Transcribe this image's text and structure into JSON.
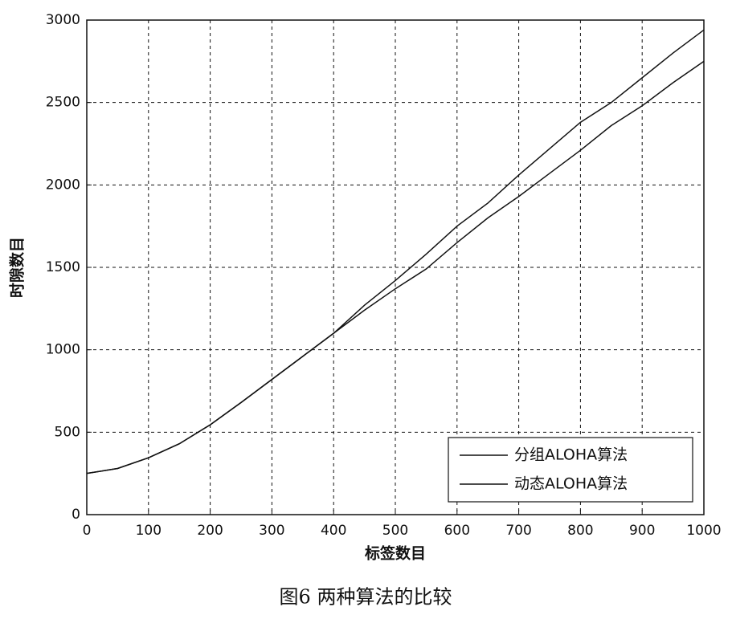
{
  "chart_data": {
    "type": "line",
    "caption": "图6  两种算法的比较",
    "xlabel": "标签数目",
    "ylabel": "时隙数目",
    "x": [
      0,
      50,
      100,
      150,
      200,
      250,
      300,
      350,
      400,
      450,
      500,
      550,
      600,
      650,
      700,
      750,
      800,
      850,
      900,
      950,
      1000
    ],
    "series": [
      {
        "name": "分组ALOHA算法",
        "color": "#111111",
        "values": [
          250,
          280,
          345,
          430,
          545,
          680,
          820,
          960,
          1100,
          1240,
          1370,
          1490,
          1650,
          1800,
          1930,
          2070,
          2210,
          2360,
          2480,
          2620,
          2750
        ]
      },
      {
        "name": "动态ALOHA算法",
        "color": "#111111",
        "values": [
          250,
          280,
          345,
          430,
          545,
          680,
          820,
          960,
          1100,
          1270,
          1420,
          1580,
          1750,
          1890,
          2060,
          2220,
          2380,
          2500,
          2650,
          2800,
          2940
        ]
      }
    ],
    "xlim": [
      0,
      1000
    ],
    "xticks": [
      0,
      100,
      200,
      300,
      400,
      500,
      600,
      700,
      800,
      900,
      1000
    ],
    "ylim": [
      0,
      3000
    ],
    "yticks": [
      0,
      500,
      1000,
      1500,
      2000,
      2500,
      3000
    ],
    "grid": true,
    "legend": "lower right"
  }
}
